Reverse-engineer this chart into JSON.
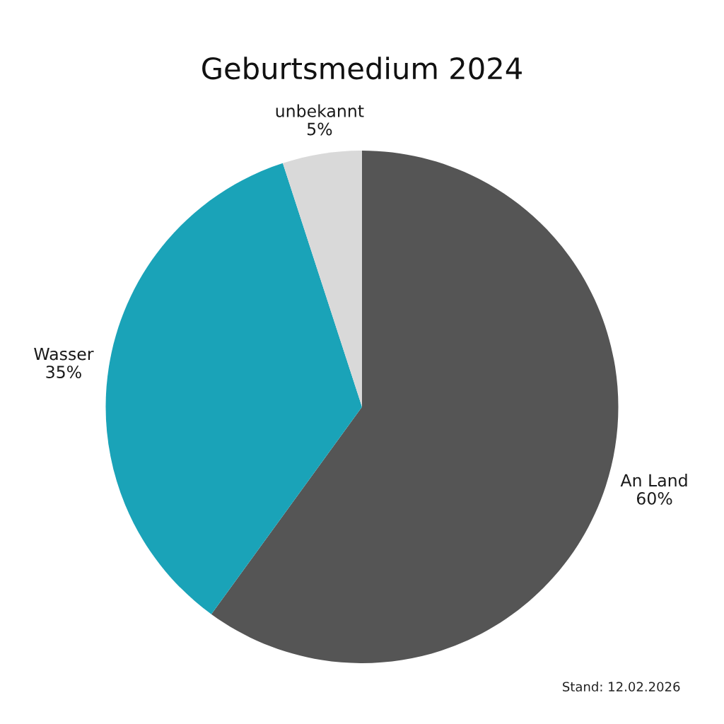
{
  "chart_data": {
    "type": "pie",
    "title": "Geburtsmedium 2024",
    "categories": [
      "An Land",
      "Wasser",
      "unbekannt"
    ],
    "values": [
      60,
      35,
      5
    ],
    "value_labels": [
      "60%",
      "35%",
      "5%"
    ],
    "colors": [
      "#555555",
      "#1aa3b8",
      "#d9d9d9"
    ],
    "annotations": [
      "Stand: 12.02.2026"
    ]
  }
}
